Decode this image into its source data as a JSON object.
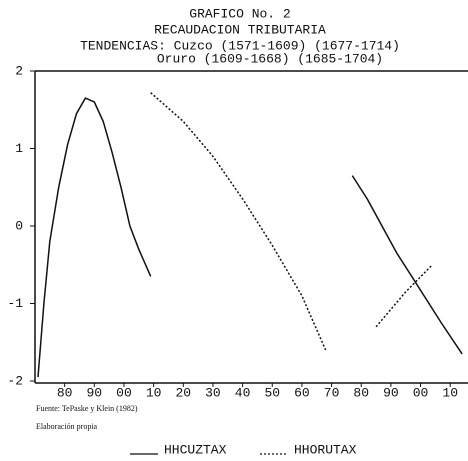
{
  "chart_data": {
    "type": "line",
    "title": "GRAFICO No. 2",
    "subtitle": "RECAUDACION TRIBUTARIA",
    "annotations": [
      "TENDENCIAS: Cuzco (1571-1609) (1677-1714)",
      "Oruro (1609-1668) (1685-1704)"
    ],
    "notes": [
      "Fuente: TePaske y Klein (1982)",
      "Elaboración propia"
    ],
    "xlim": [
      1570,
      1716
    ],
    "xticks": [
      {
        "value": 1580,
        "label": "80"
      },
      {
        "value": 1590,
        "label": "90"
      },
      {
        "value": 1600,
        "label": "00"
      },
      {
        "value": 1610,
        "label": "10"
      },
      {
        "value": 1620,
        "label": "20"
      },
      {
        "value": 1630,
        "label": "30"
      },
      {
        "value": 1640,
        "label": "40"
      },
      {
        "value": 1650,
        "label": "50"
      },
      {
        "value": 1660,
        "label": "60"
      },
      {
        "value": 1670,
        "label": "70"
      },
      {
        "value": 1680,
        "label": "80"
      },
      {
        "value": 1690,
        "label": "90"
      },
      {
        "value": 1700,
        "label": "00"
      },
      {
        "value": 1710,
        "label": "10"
      }
    ],
    "ylim": [
      -2,
      2
    ],
    "yticks": [
      2,
      1,
      0,
      -1,
      -2
    ],
    "grid": false,
    "legend": "bottom",
    "series": [
      {
        "name": "HHCUZTAX",
        "color": "#111111",
        "dash": "solid",
        "x": [
          1571,
          1573,
          1575,
          1578,
          1581,
          1584,
          1587,
          1590,
          1593,
          1596,
          1599,
          1602,
          1605,
          1609,
          1640,
          1677,
          1682,
          1687,
          1692,
          1697,
          1702,
          1707,
          1714
        ],
        "values": [
          -1.95,
          -1.0,
          -0.2,
          0.5,
          1.05,
          1.45,
          1.65,
          1.6,
          1.35,
          0.95,
          0.5,
          0.0,
          -0.3,
          -0.65,
          null,
          0.65,
          0.35,
          0.0,
          -0.35,
          -0.65,
          -0.95,
          -1.25,
          -1.65
        ]
      },
      {
        "name": "HHORUTAX",
        "color": "#111111",
        "dash": "dotted",
        "x": [
          1609,
          1620,
          1630,
          1640,
          1650,
          1660,
          1668,
          1676,
          1685,
          1695,
          1704
        ],
        "values": [
          1.72,
          1.35,
          0.9,
          0.35,
          -0.25,
          -0.9,
          -1.6,
          null,
          -1.3,
          -0.85,
          -0.5
        ]
      }
    ]
  }
}
